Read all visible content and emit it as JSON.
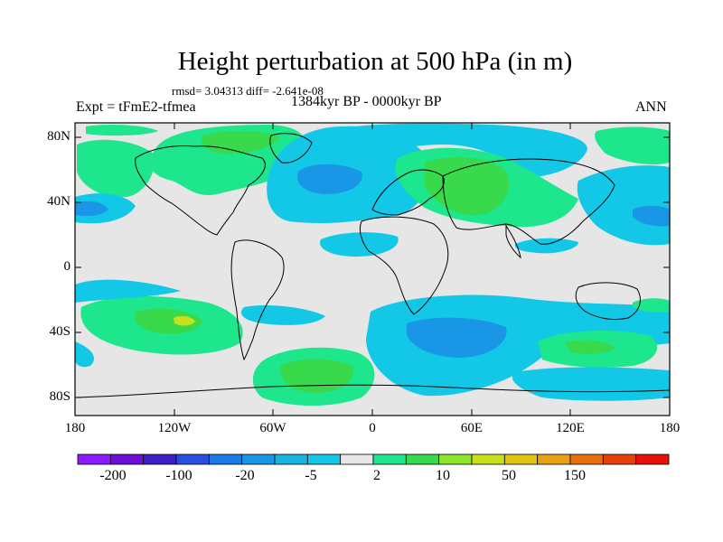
{
  "figure": {
    "title": "Height perturbation at 500 hPa (in m)",
    "stats": "rmsd= 3.04313 diff= -2.641e-08",
    "experiment": "Expt = tFmE2-tfmea",
    "period": "1384kyr BP - 0000kyr BP",
    "season": "ANN"
  },
  "map": {
    "projection": "cylindrical-equidistant",
    "lon_range": [
      -180,
      180
    ],
    "lat_range": [
      -90,
      90
    ],
    "lat_ticks": [
      "80N",
      "40N",
      "0",
      "40S",
      "80S"
    ],
    "lon_ticks": [
      "180",
      "120W",
      "60W",
      "0",
      "60E",
      "120E",
      "180"
    ],
    "background_color": "#e6e6e6"
  },
  "colorbar": {
    "colors": [
      "#8c1aff",
      "#6b0fd9",
      "#3e1fc7",
      "#2a4fe0",
      "#1a7ae6",
      "#1a96e6",
      "#18b5e0",
      "#12c8e6",
      "#e8e8e8",
      "#1de68c",
      "#38d94a",
      "#8ce62a",
      "#c8e01a",
      "#e0c412",
      "#e6a010",
      "#e6700f",
      "#e6400d",
      "#e6120a"
    ],
    "labels": [
      "-200",
      "-100",
      "-20",
      "-5",
      "2",
      "10",
      "50",
      "150"
    ]
  }
}
